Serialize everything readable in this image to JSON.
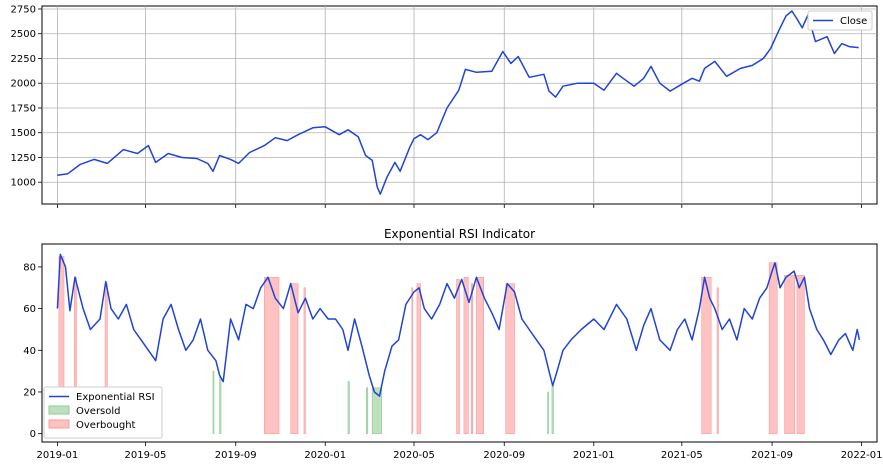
{
  "chart_data": [
    {
      "type": "line",
      "title": "",
      "xlabel": "",
      "ylabel": "",
      "grid": true,
      "legend_position": "top-right",
      "ylim": [
        780,
        2780
      ],
      "xlim": [
        "2018-12-11",
        "2022-01-22"
      ],
      "yticks": [
        1000,
        1250,
        1500,
        1750,
        2000,
        2250,
        2500,
        2750
      ],
      "ytick_labels": [
        "1000",
        "1250",
        "1500",
        "1750",
        "2000",
        "2250",
        "2500",
        "2750"
      ],
      "xticks": [
        "2019-01-01",
        "2019-05-01",
        "2019-09-01",
        "2020-01-01",
        "2020-05-01",
        "2020-09-01",
        "2021-01-01",
        "2021-05-01",
        "2021-09-01",
        "2022-01-01"
      ],
      "series": [
        {
          "name": "Close",
          "color": "#1f44d6",
          "points": [
            [
              "2019-01-01",
              1070
            ],
            [
              "2019-01-15",
              1085
            ],
            [
              "2019-02-01",
              1180
            ],
            [
              "2019-02-20",
              1230
            ],
            [
              "2019-03-10",
              1190
            ],
            [
              "2019-04-01",
              1330
            ],
            [
              "2019-04-20",
              1290
            ],
            [
              "2019-05-05",
              1370
            ],
            [
              "2019-05-15",
              1200
            ],
            [
              "2019-06-01",
              1290
            ],
            [
              "2019-06-20",
              1250
            ],
            [
              "2019-07-10",
              1240
            ],
            [
              "2019-07-25",
              1190
            ],
            [
              "2019-08-01",
              1110
            ],
            [
              "2019-08-10",
              1270
            ],
            [
              "2019-08-25",
              1230
            ],
            [
              "2019-09-05",
              1190
            ],
            [
              "2019-09-20",
              1300
            ],
            [
              "2019-10-10",
              1370
            ],
            [
              "2019-10-25",
              1450
            ],
            [
              "2019-11-10",
              1420
            ],
            [
              "2019-11-25",
              1480
            ],
            [
              "2019-12-15",
              1550
            ],
            [
              "2020-01-01",
              1560
            ],
            [
              "2020-01-20",
              1480
            ],
            [
              "2020-02-01",
              1530
            ],
            [
              "2020-02-15",
              1460
            ],
            [
              "2020-02-25",
              1270
            ],
            [
              "2020-03-05",
              1220
            ],
            [
              "2020-03-12",
              950
            ],
            [
              "2020-03-16",
              880
            ],
            [
              "2020-03-25",
              1050
            ],
            [
              "2020-04-05",
              1200
            ],
            [
              "2020-04-12",
              1110
            ],
            [
              "2020-04-25",
              1350
            ],
            [
              "2020-05-01",
              1440
            ],
            [
              "2020-05-10",
              1480
            ],
            [
              "2020-05-20",
              1430
            ],
            [
              "2020-06-01",
              1500
            ],
            [
              "2020-06-15",
              1750
            ],
            [
              "2020-07-01",
              1930
            ],
            [
              "2020-07-10",
              2140
            ],
            [
              "2020-07-25",
              2110
            ],
            [
              "2020-08-15",
              2120
            ],
            [
              "2020-08-30",
              2320
            ],
            [
              "2020-09-10",
              2200
            ],
            [
              "2020-09-20",
              2270
            ],
            [
              "2020-10-05",
              2060
            ],
            [
              "2020-10-25",
              2090
            ],
            [
              "2020-11-01",
              1920
            ],
            [
              "2020-11-10",
              1860
            ],
            [
              "2020-11-20",
              1970
            ],
            [
              "2020-12-10",
              2000
            ],
            [
              "2021-01-01",
              2000
            ],
            [
              "2021-01-15",
              1930
            ],
            [
              "2021-02-01",
              2100
            ],
            [
              "2021-02-10",
              2050
            ],
            [
              "2021-02-25",
              1970
            ],
            [
              "2021-03-10",
              2050
            ],
            [
              "2021-03-20",
              2170
            ],
            [
              "2021-04-01",
              2000
            ],
            [
              "2021-04-15",
              1920
            ],
            [
              "2021-05-01",
              1990
            ],
            [
              "2021-05-15",
              2050
            ],
            [
              "2021-05-25",
              2020
            ],
            [
              "2021-06-01",
              2150
            ],
            [
              "2021-06-15",
              2220
            ],
            [
              "2021-07-01",
              2070
            ],
            [
              "2021-07-20",
              2150
            ],
            [
              "2021-08-05",
              2180
            ],
            [
              "2021-08-20",
              2250
            ],
            [
              "2021-08-30",
              2350
            ],
            [
              "2021-09-10",
              2530
            ],
            [
              "2021-09-20",
              2680
            ],
            [
              "2021-09-28",
              2730
            ],
            [
              "2021-10-05",
              2650
            ],
            [
              "2021-10-12",
              2560
            ],
            [
              "2021-10-20",
              2690
            ],
            [
              "2021-10-30",
              2420
            ],
            [
              "2021-11-15",
              2470
            ],
            [
              "2021-11-25",
              2300
            ],
            [
              "2021-12-05",
              2400
            ],
            [
              "2021-12-15",
              2370
            ],
            [
              "2021-12-28",
              2360
            ]
          ]
        }
      ]
    },
    {
      "type": "line",
      "title": "Exponential RSI Indicator",
      "xlabel": "",
      "ylabel": "",
      "grid": false,
      "legend_position": "lower-left",
      "ylim": [
        -4,
        91
      ],
      "xlim": [
        "2018-12-11",
        "2022-01-22"
      ],
      "yticks": [
        0,
        20,
        40,
        60,
        80
      ],
      "ytick_labels": [
        "0",
        "20",
        "40",
        "60",
        "80"
      ],
      "xticks": [
        "2019-01-01",
        "2019-05-01",
        "2019-09-01",
        "2020-01-01",
        "2020-05-01",
        "2020-09-01",
        "2021-01-01",
        "2021-05-01",
        "2021-09-01",
        "2022-01-01"
      ],
      "xtick_labels": [
        "2019-01",
        "2019-05",
        "2019-09",
        "2020-01",
        "2020-05",
        "2020-09",
        "2021-01",
        "2021-05",
        "2021-09",
        "2022-01"
      ],
      "series": [
        {
          "name": "Exponential RSI",
          "color": "#1f44d6",
          "points": [
            [
              "2019-01-01",
              60
            ],
            [
              "2019-01-05",
              86
            ],
            [
              "2019-01-12",
              80
            ],
            [
              "2019-01-18",
              59
            ],
            [
              "2019-01-25",
              75
            ],
            [
              "2019-02-05",
              60
            ],
            [
              "2019-02-15",
              50
            ],
            [
              "2019-02-28",
              55
            ],
            [
              "2019-03-08",
              73
            ],
            [
              "2019-03-15",
              60
            ],
            [
              "2019-03-25",
              55
            ],
            [
              "2019-04-05",
              62
            ],
            [
              "2019-04-15",
              50
            ],
            [
              "2019-04-25",
              45
            ],
            [
              "2019-05-05",
              40
            ],
            [
              "2019-05-15",
              35
            ],
            [
              "2019-05-25",
              55
            ],
            [
              "2019-06-05",
              62
            ],
            [
              "2019-06-15",
              50
            ],
            [
              "2019-06-25",
              40
            ],
            [
              "2019-07-05",
              45
            ],
            [
              "2019-07-15",
              55
            ],
            [
              "2019-07-25",
              40
            ],
            [
              "2019-08-05",
              35
            ],
            [
              "2019-08-10",
              28
            ],
            [
              "2019-08-15",
              25
            ],
            [
              "2019-08-25",
              55
            ],
            [
              "2019-09-05",
              45
            ],
            [
              "2019-09-15",
              62
            ],
            [
              "2019-09-25",
              60
            ],
            [
              "2019-10-05",
              70
            ],
            [
              "2019-10-15",
              75
            ],
            [
              "2019-10-25",
              65
            ],
            [
              "2019-11-05",
              60
            ],
            [
              "2019-11-15",
              72
            ],
            [
              "2019-11-25",
              58
            ],
            [
              "2019-12-05",
              65
            ],
            [
              "2019-12-15",
              55
            ],
            [
              "2019-12-25",
              60
            ],
            [
              "2020-01-05",
              55
            ],
            [
              "2020-01-15",
              55
            ],
            [
              "2020-01-25",
              50
            ],
            [
              "2020-02-01",
              40
            ],
            [
              "2020-02-10",
              55
            ],
            [
              "2020-02-20",
              42
            ],
            [
              "2020-03-01",
              28
            ],
            [
              "2020-03-08",
              20
            ],
            [
              "2020-03-15",
              18
            ],
            [
              "2020-03-22",
              30
            ],
            [
              "2020-04-01",
              42
            ],
            [
              "2020-04-10",
              45
            ],
            [
              "2020-04-20",
              62
            ],
            [
              "2020-05-01",
              68
            ],
            [
              "2020-05-08",
              70
            ],
            [
              "2020-05-15",
              60
            ],
            [
              "2020-05-25",
              55
            ],
            [
              "2020-06-05",
              62
            ],
            [
              "2020-06-15",
              72
            ],
            [
              "2020-06-25",
              65
            ],
            [
              "2020-07-05",
              74
            ],
            [
              "2020-07-15",
              63
            ],
            [
              "2020-07-25",
              75
            ],
            [
              "2020-08-05",
              65
            ],
            [
              "2020-08-15",
              58
            ],
            [
              "2020-08-25",
              50
            ],
            [
              "2020-09-05",
              72
            ],
            [
              "2020-09-15",
              68
            ],
            [
              "2020-09-25",
              55
            ],
            [
              "2020-10-05",
              50
            ],
            [
              "2020-10-15",
              45
            ],
            [
              "2020-10-25",
              40
            ],
            [
              "2020-11-01",
              30
            ],
            [
              "2020-11-06",
              23
            ],
            [
              "2020-11-12",
              30
            ],
            [
              "2020-11-20",
              40
            ],
            [
              "2020-12-01",
              45
            ],
            [
              "2020-12-15",
              50
            ],
            [
              "2021-01-01",
              55
            ],
            [
              "2021-01-15",
              50
            ],
            [
              "2021-02-01",
              62
            ],
            [
              "2021-02-15",
              55
            ],
            [
              "2021-02-28",
              40
            ],
            [
              "2021-03-10",
              52
            ],
            [
              "2021-03-20",
              60
            ],
            [
              "2021-04-01",
              45
            ],
            [
              "2021-04-15",
              40
            ],
            [
              "2021-04-25",
              50
            ],
            [
              "2021-05-05",
              55
            ],
            [
              "2021-05-15",
              45
            ],
            [
              "2021-05-25",
              60
            ],
            [
              "2021-06-01",
              75
            ],
            [
              "2021-06-08",
              65
            ],
            [
              "2021-06-15",
              60
            ],
            [
              "2021-06-25",
              50
            ],
            [
              "2021-07-05",
              55
            ],
            [
              "2021-07-15",
              45
            ],
            [
              "2021-07-25",
              60
            ],
            [
              "2021-08-05",
              55
            ],
            [
              "2021-08-15",
              65
            ],
            [
              "2021-08-25",
              70
            ],
            [
              "2021-09-01",
              78
            ],
            [
              "2021-09-05",
              82
            ],
            [
              "2021-09-12",
              70
            ],
            [
              "2021-09-20",
              75
            ],
            [
              "2021-10-01",
              78
            ],
            [
              "2021-10-08",
              70
            ],
            [
              "2021-10-15",
              75
            ],
            [
              "2021-10-22",
              60
            ],
            [
              "2021-11-01",
              50
            ],
            [
              "2021-11-10",
              45
            ],
            [
              "2021-11-20",
              38
            ],
            [
              "2021-12-01",
              45
            ],
            [
              "2021-12-10",
              48
            ],
            [
              "2021-12-20",
              40
            ],
            [
              "2021-12-26",
              50
            ],
            [
              "2021-12-29",
              45
            ]
          ]
        },
        {
          "name": "Oversold",
          "color": "#8fcb8f",
          "spans": [
            [
              "2019-08-01",
              "2019-08-02",
              30
            ],
            [
              "2019-08-10",
              "2019-08-12",
              27
            ],
            [
              "2020-02-01",
              "2020-02-03",
              25
            ],
            [
              "2020-02-26",
              "2020-02-28",
              22
            ],
            [
              "2020-03-05",
              "2020-03-18",
              22
            ],
            [
              "2020-10-30",
              "2020-10-31",
              20
            ],
            [
              "2020-11-05",
              "2020-11-07",
              23
            ]
          ]
        },
        {
          "name": "Overbought",
          "color": "#ff9a9a",
          "spans": [
            [
              "2019-01-03",
              "2019-01-10",
              85
            ],
            [
              "2019-01-24",
              "2019-01-27",
              75
            ],
            [
              "2019-03-07",
              "2019-03-10",
              72
            ],
            [
              "2019-10-10",
              "2019-10-30",
              75
            ],
            [
              "2019-11-15",
              "2019-11-25",
              72
            ],
            [
              "2019-12-03",
              "2019-12-05",
              70
            ],
            [
              "2020-04-28",
              "2020-04-29",
              70
            ],
            [
              "2020-05-05",
              "2020-05-10",
              72
            ],
            [
              "2020-06-28",
              "2020-07-02",
              74
            ],
            [
              "2020-07-08",
              "2020-07-14",
              75
            ],
            [
              "2020-07-18",
              "2020-07-20",
              72
            ],
            [
              "2020-07-25",
              "2020-08-04",
              75
            ],
            [
              "2020-09-03",
              "2020-09-15",
              72
            ],
            [
              "2021-05-28",
              "2021-06-10",
              75
            ],
            [
              "2021-06-18",
              "2021-06-20",
              70
            ],
            [
              "2021-08-28",
              "2021-09-08",
              82
            ],
            [
              "2021-09-18",
              "2021-10-02",
              76
            ],
            [
              "2021-10-05",
              "2021-10-15",
              76
            ]
          ]
        }
      ]
    }
  ]
}
